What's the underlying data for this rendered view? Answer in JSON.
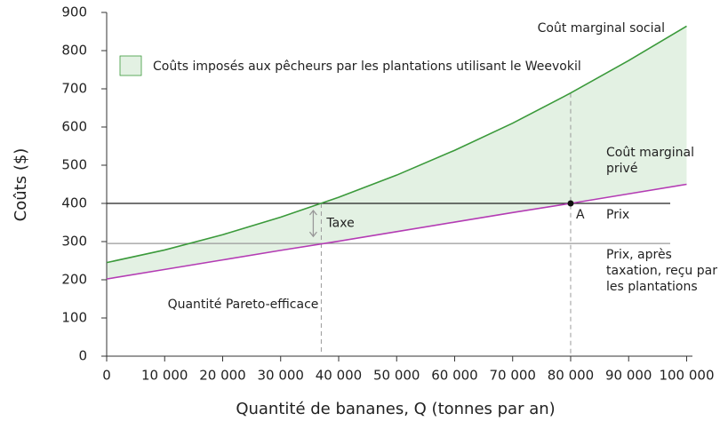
{
  "chart_data": {
    "type": "line",
    "x_label": "Quantité de bananes, Q (tonnes par an)",
    "y_label": "Coûts ($)",
    "x": [
      0,
      10000,
      20000,
      30000,
      40000,
      50000,
      60000,
      70000,
      80000,
      90000,
      100000
    ],
    "series": [
      {
        "name": "Coût marginal social",
        "color": "#3b9a3b",
        "values": [
          245,
          278,
          318,
          364,
          416,
          474,
          539,
          610,
          689,
          774,
          864
        ]
      },
      {
        "name": "Coût marginal privé",
        "color": "#b43cb4",
        "values": [
          202,
          227,
          252,
          277,
          301,
          326,
          351,
          376,
          400,
          425,
          450
        ]
      }
    ],
    "area_label": "Coûts imposés aux pêcheurs par les plantations utilisant le Weevokil",
    "area_color": "#e3f1e3",
    "price": 400,
    "price_label": "Prix",
    "after_tax_price": 295,
    "after_tax_label": "Prix, après taxation, reçu par les plantations",
    "tax_label": "Taxe",
    "pareto_quantity": 37000,
    "pareto_label": "Quantité Pareto-efficace",
    "market_quantity": 80000,
    "point_label": "A",
    "xlim": [
      0,
      101000
    ],
    "ylim": [
      0,
      900
    ],
    "xticks": [
      0,
      {
        "value": 10000,
        "label": "10 000"
      },
      {
        "value": 20000,
        "label": "20 000"
      },
      {
        "value": 30000,
        "label": "30 000"
      },
      {
        "value": 40000,
        "label": "40 000"
      },
      {
        "value": 50000,
        "label": "50 000"
      },
      {
        "value": 60000,
        "label": "60 000"
      },
      {
        "value": 70000,
        "label": "70 000"
      },
      {
        "value": 80000,
        "label": "80 000"
      },
      {
        "value": 90000,
        "label": "90 000"
      },
      {
        "value": 100000,
        "label": "100 000"
      }
    ],
    "yticks": [
      0,
      100,
      200,
      300,
      400,
      500,
      600,
      700,
      800,
      900
    ]
  }
}
